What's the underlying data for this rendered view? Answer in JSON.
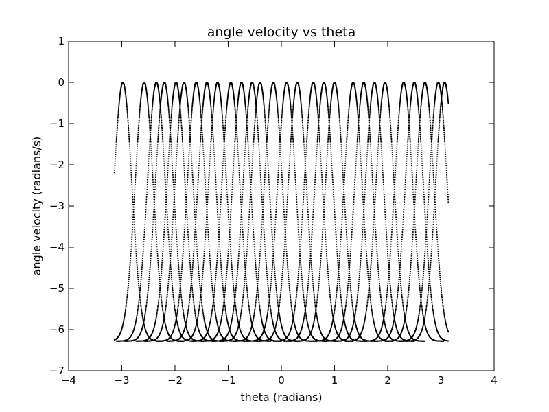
{
  "chart_data": {
    "type": "scatter",
    "title": "angle velocity vs theta",
    "xlabel": "theta (radians)",
    "ylabel": "angle velocity (radians/s)",
    "xlim": [
      -4,
      4
    ],
    "ylim": [
      -7,
      1
    ],
    "xticks": [
      -4,
      -3,
      -2,
      -1,
      0,
      1,
      2,
      3,
      4
    ],
    "yticks": [
      1,
      0,
      -1,
      -2,
      -3,
      -4,
      -5,
      -6,
      -7
    ],
    "xtick_labels": [
      "−4",
      "−3",
      "−2",
      "−1",
      "0",
      "1",
      "2",
      "3",
      "4"
    ],
    "ytick_labels": [
      "1",
      "0",
      "−1",
      "−2",
      "−3",
      "−4",
      "−5",
      "−6",
      "−7"
    ],
    "grid": false,
    "legend": false,
    "marker_color": "#000000",
    "theta_range": [
      -3.14,
      3.14
    ],
    "velocity_range": [
      -6.28,
      0
    ],
    "lobe_peaks_theta": [
      -2.98,
      -2.58,
      -2.35,
      -2.2,
      -1.98,
      -1.83,
      -1.6,
      -1.4,
      -1.2,
      -0.95,
      -0.75,
      -0.55,
      -0.4,
      -0.15,
      0.1,
      0.3,
      0.6,
      0.8,
      1.0,
      1.35,
      1.55,
      1.75,
      1.95,
      2.3,
      2.5,
      2.7,
      2.95,
      3.07
    ],
    "lobe_min_velocity": -6.28
  }
}
